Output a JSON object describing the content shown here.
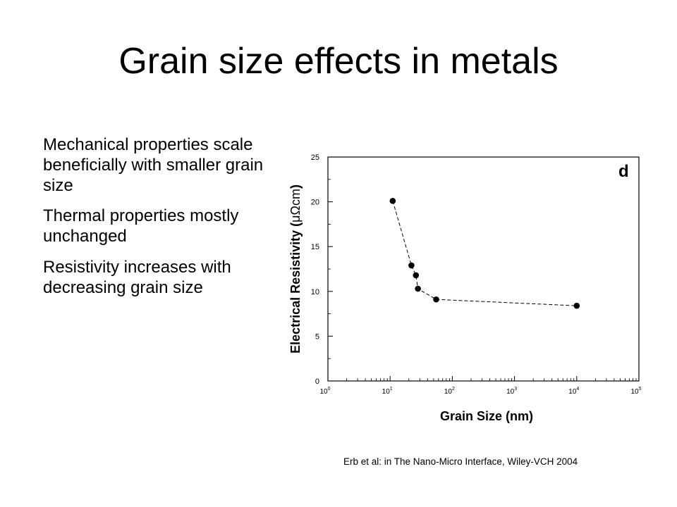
{
  "slide": {
    "title": "Grain size effects in metals",
    "bullets": [
      "Mechanical properties scale beneficially with smaller grain size",
      "Thermal properties mostly unchanged",
      "Resistivity increases with decreasing grain size"
    ],
    "citation": "Erb et al: in The Nano-Micro Interface, Wiley-VCH 2004"
  },
  "chart_data": {
    "type": "scatter",
    "panel_label": "d",
    "xlabel": "Grain Size (nm)",
    "ylabel_main": "Electrical Resistivity (",
    "ylabel_unit": "μΩcm",
    "ylabel_close": ")",
    "x_scale": "log",
    "xlim": [
      1,
      100000
    ],
    "ylim": [
      0,
      25
    ],
    "xticks": [
      {
        "value": 1,
        "base": "10",
        "exp": "0"
      },
      {
        "value": 10,
        "base": "10",
        "exp": "1"
      },
      {
        "value": 100,
        "base": "10",
        "exp": "2"
      },
      {
        "value": 1000,
        "base": "10",
        "exp": "3"
      },
      {
        "value": 10000,
        "base": "10",
        "exp": "4"
      },
      {
        "value": 100000,
        "base": "10",
        "exp": "5"
      }
    ],
    "yticks": [
      0,
      5,
      10,
      15,
      20,
      25
    ],
    "line_style": "dashed",
    "series": [
      {
        "points": [
          {
            "x": 11,
            "y": 20.1
          },
          {
            "x": 22,
            "y": 12.9
          },
          {
            "x": 26,
            "y": 11.8
          },
          {
            "x": 28,
            "y": 10.3
          },
          {
            "x": 55,
            "y": 9.1
          },
          {
            "x": 10000,
            "y": 8.4
          }
        ]
      }
    ]
  }
}
